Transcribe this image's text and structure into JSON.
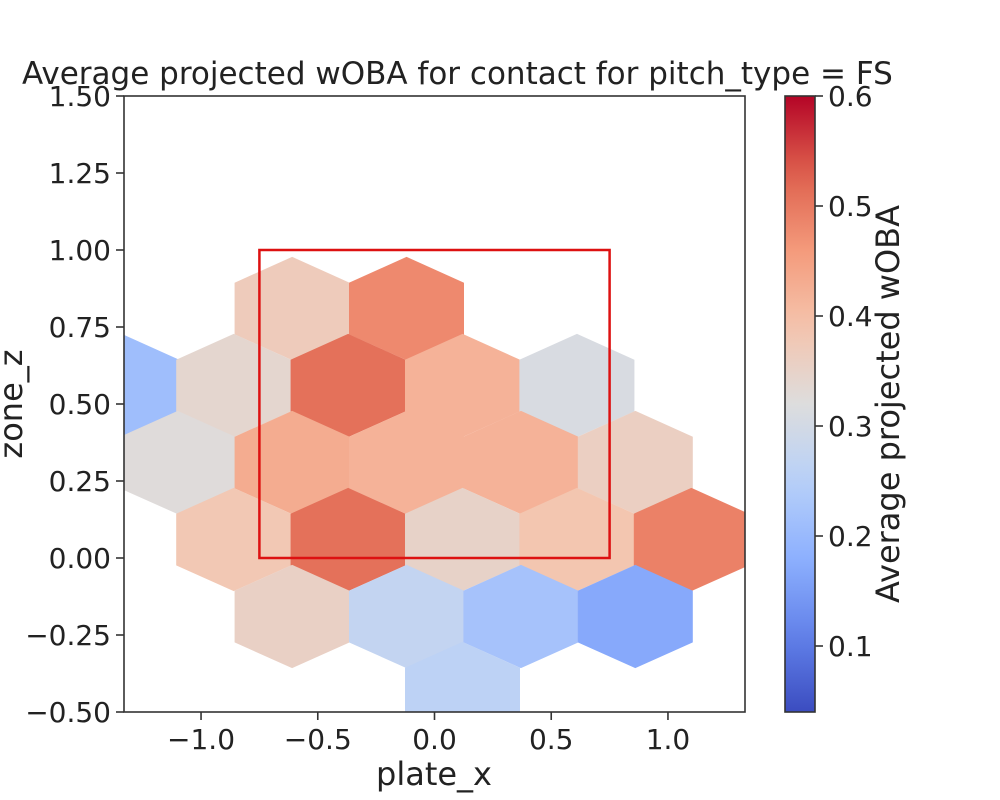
{
  "chart_data": {
    "type": "heatmap",
    "title": "Average projected wOBA for contact for pitch_type = FS",
    "xlabel": "plate_x",
    "ylabel": "zone_z",
    "colorbar_label": "Average projected wOBA",
    "xlim": [
      -1.33,
      1.33
    ],
    "ylim": [
      -0.5,
      1.5
    ],
    "x_ticks": [
      -1.0,
      -0.5,
      0.0,
      0.5,
      1.0
    ],
    "x_tick_labels": [
      "−1.0",
      "−0.5",
      "0.0",
      "0.5",
      "1.0"
    ],
    "y_ticks": [
      -0.5,
      -0.25,
      0.0,
      0.25,
      0.5,
      0.75,
      1.0,
      1.25,
      1.5
    ],
    "y_tick_labels": [
      "−0.50",
      "−0.25",
      "0.00",
      "0.25",
      "0.50",
      "0.75",
      "1.00",
      "1.25",
      "1.50"
    ],
    "color_range": [
      0.04,
      0.6
    ],
    "colorbar_ticks": [
      0.1,
      0.2,
      0.3,
      0.4,
      0.5,
      0.6
    ],
    "colorbar_tick_labels": [
      "0.1",
      "0.2",
      "0.3",
      "0.4",
      "0.5",
      "0.6"
    ],
    "colormap": "coolwarm",
    "grid": false,
    "strike_zone": {
      "x": [
        -0.75,
        0.75
      ],
      "z": [
        0.0,
        1.0
      ],
      "color": "#dd1111"
    },
    "hexbins": [
      {
        "x": -0.61,
        "z": 0.81,
        "value": 0.37
      },
      {
        "x": -0.12,
        "z": 0.81,
        "value": 0.48
      },
      {
        "x": -1.34,
        "z": 0.56,
        "value": 0.21
      },
      {
        "x": -0.86,
        "z": 0.56,
        "value": 0.34
      },
      {
        "x": -0.37,
        "z": 0.56,
        "value": 0.51
      },
      {
        "x": 0.12,
        "z": 0.56,
        "value": 0.42
      },
      {
        "x": 0.61,
        "z": 0.56,
        "value": 0.31
      },
      {
        "x": -1.1,
        "z": 0.31,
        "value": 0.325
      },
      {
        "x": -0.61,
        "z": 0.31,
        "value": 0.43
      },
      {
        "x": -0.12,
        "z": 0.31,
        "value": 0.42
      },
      {
        "x": 0.37,
        "z": 0.31,
        "value": 0.42
      },
      {
        "x": 0.86,
        "z": 0.31,
        "value": 0.36
      },
      {
        "x": -0.86,
        "z": 0.06,
        "value": 0.38
      },
      {
        "x": -0.37,
        "z": 0.06,
        "value": 0.51
      },
      {
        "x": 0.12,
        "z": 0.06,
        "value": 0.35
      },
      {
        "x": 0.61,
        "z": 0.06,
        "value": 0.385
      },
      {
        "x": 1.1,
        "z": 0.06,
        "value": 0.49
      },
      {
        "x": -0.61,
        "z": -0.19,
        "value": 0.355
      },
      {
        "x": -0.12,
        "z": -0.19,
        "value": 0.27
      },
      {
        "x": 0.37,
        "z": -0.19,
        "value": 0.22
      },
      {
        "x": 0.86,
        "z": -0.19,
        "value": 0.17
      },
      {
        "x": 0.12,
        "z": -0.44,
        "value": 0.26
      }
    ]
  }
}
